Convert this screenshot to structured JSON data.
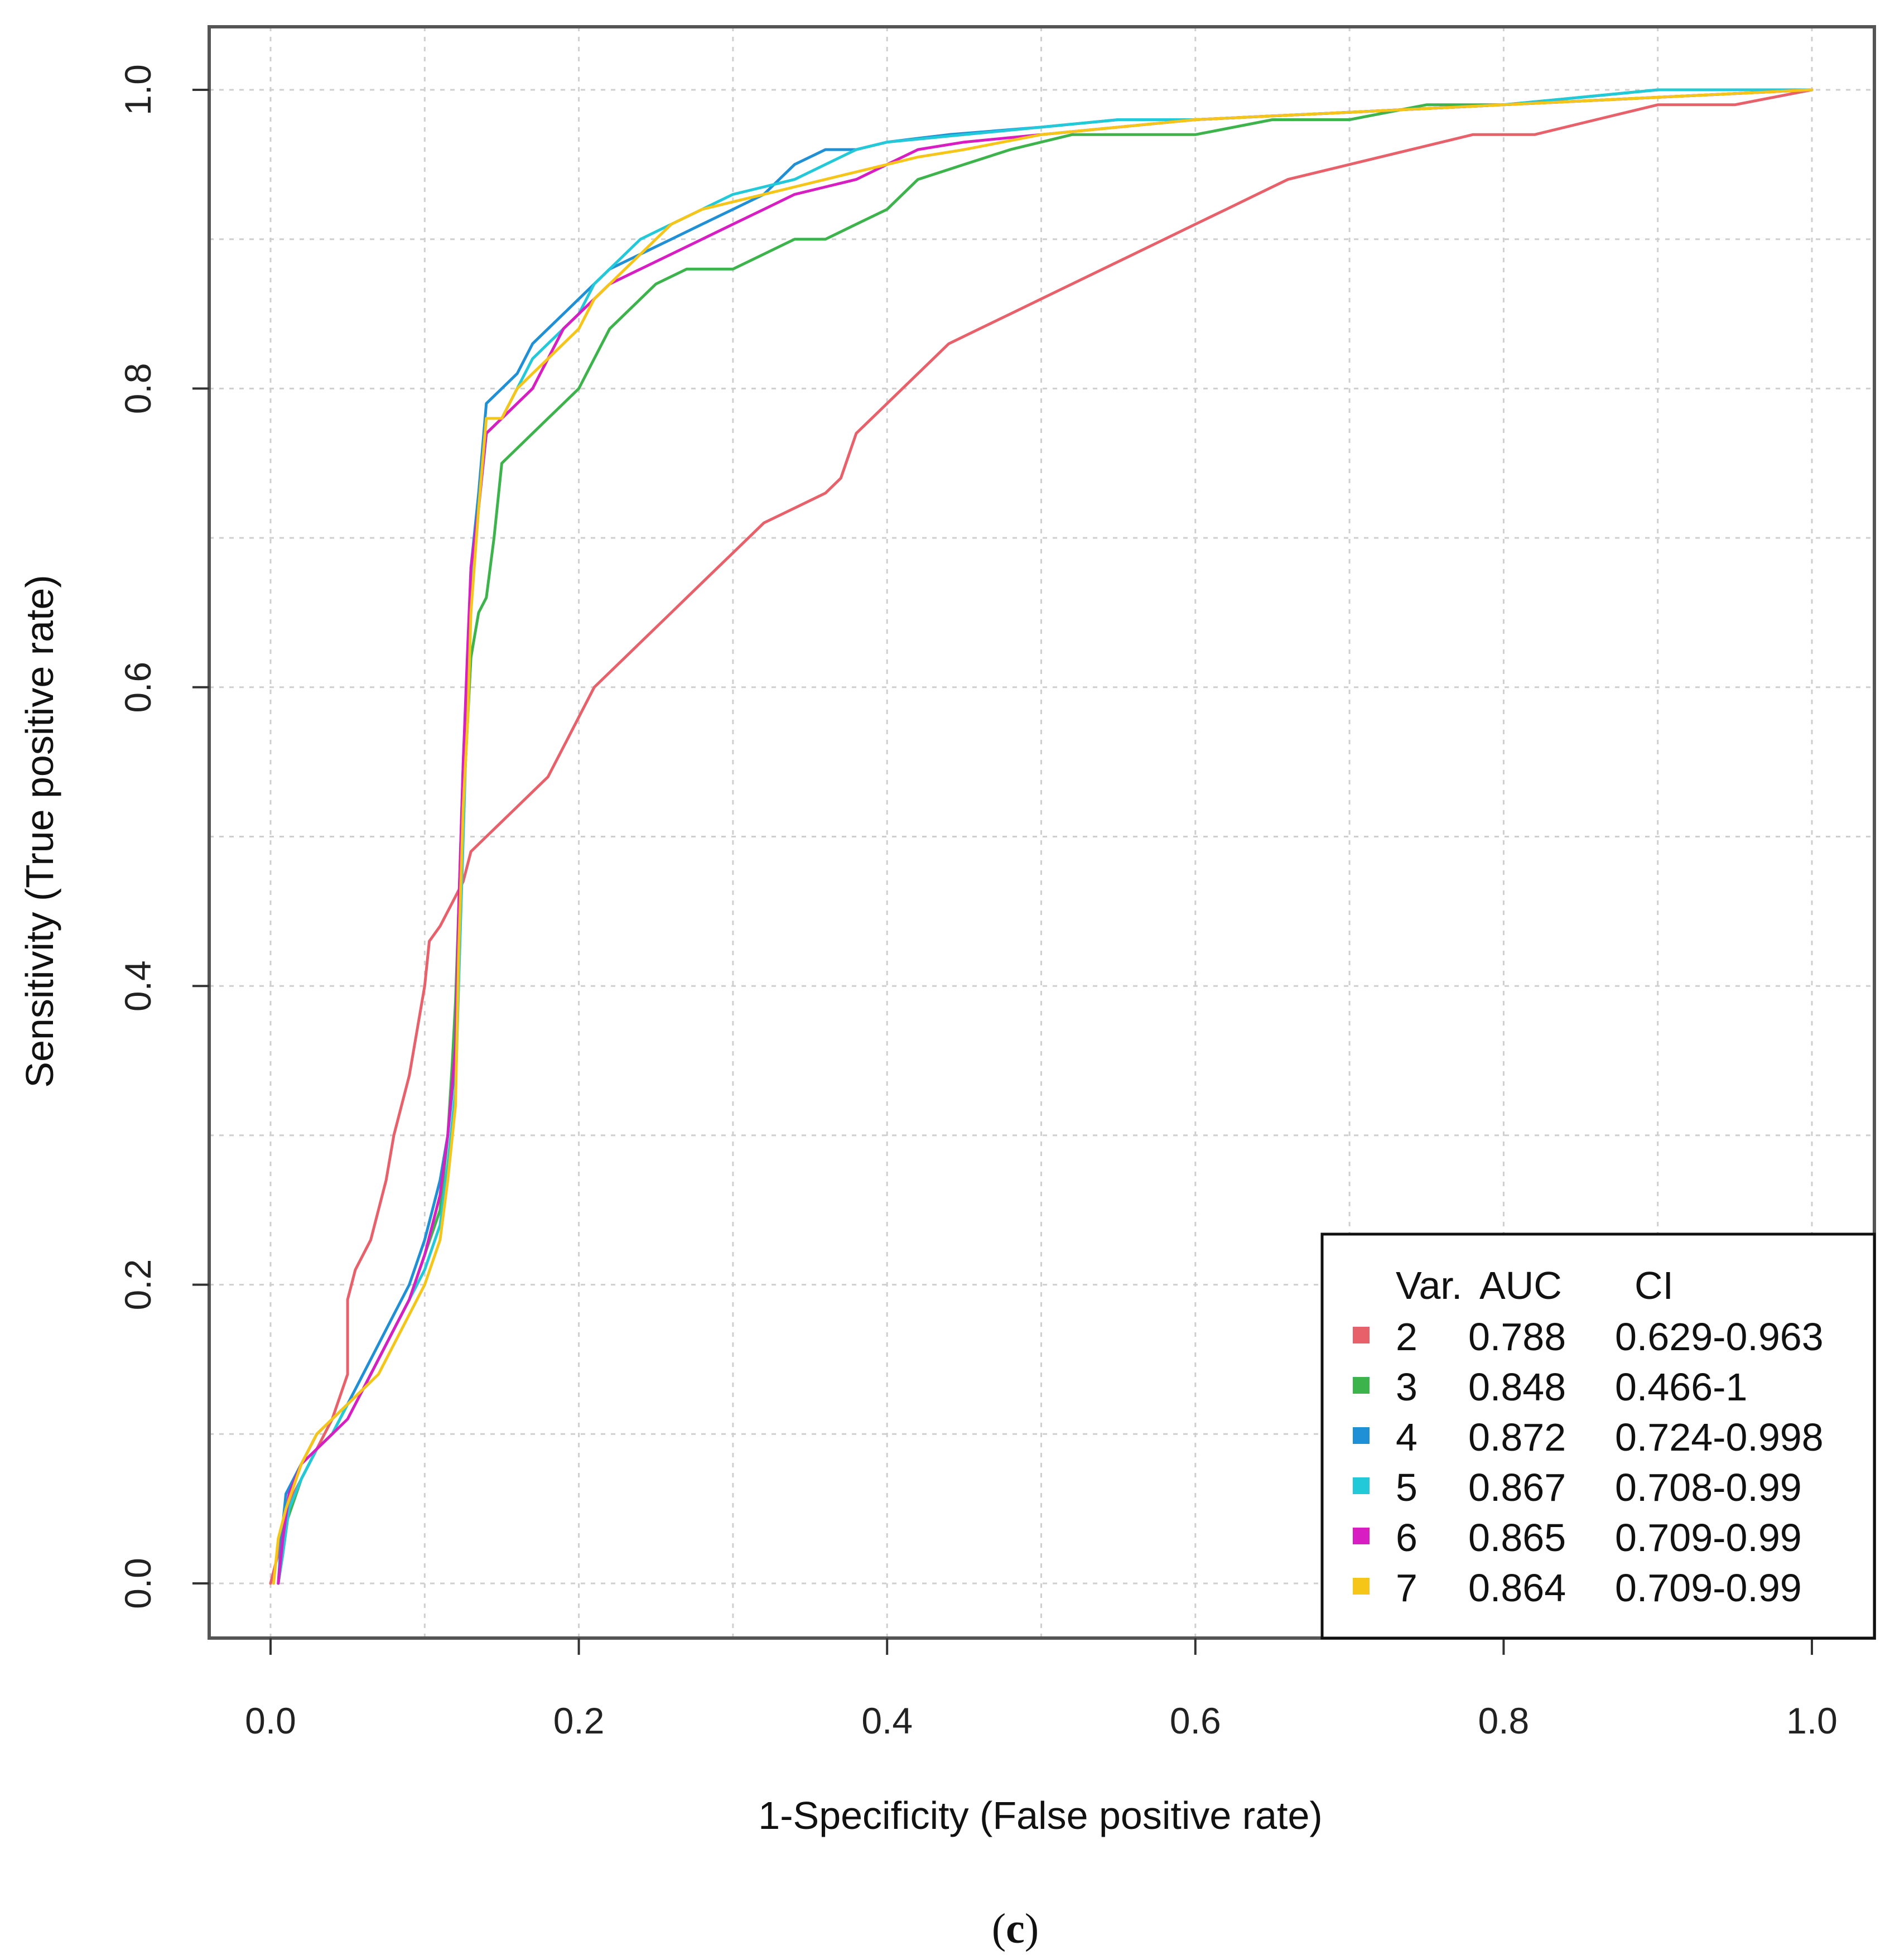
{
  "chart_data": {
    "type": "line",
    "title": "",
    "xlabel": "1-Specificity (False positive rate)",
    "ylabel": "Sensitivity (True positive rate)",
    "xlim": [
      0.0,
      1.0
    ],
    "ylim": [
      0.0,
      1.0
    ],
    "grid": true,
    "xticks": [
      "0.0",
      "0.2",
      "0.4",
      "0.6",
      "0.8",
      "1.0"
    ],
    "yticks": [
      "0.0",
      "0.2",
      "0.4",
      "0.6",
      "0.8",
      "1.0"
    ],
    "legend": {
      "position": "bottom-right",
      "header": {
        "var": "Var.",
        "auc": "AUC",
        "ci": "CI"
      }
    },
    "series": [
      {
        "name": "2",
        "auc": "0.788",
        "ci": "0.629-0.963",
        "color": "#e8606a",
        "points": [
          [
            0.0,
            0.0
          ],
          [
            0.005,
            0.02
          ],
          [
            0.01,
            0.05
          ],
          [
            0.02,
            0.07
          ],
          [
            0.03,
            0.09
          ],
          [
            0.04,
            0.11
          ],
          [
            0.05,
            0.14
          ],
          [
            0.05,
            0.19
          ],
          [
            0.055,
            0.21
          ],
          [
            0.065,
            0.23
          ],
          [
            0.075,
            0.27
          ],
          [
            0.08,
            0.3
          ],
          [
            0.09,
            0.34
          ],
          [
            0.095,
            0.37
          ],
          [
            0.1,
            0.4
          ],
          [
            0.103,
            0.43
          ],
          [
            0.11,
            0.44
          ],
          [
            0.12,
            0.46
          ],
          [
            0.125,
            0.47
          ],
          [
            0.13,
            0.49
          ],
          [
            0.14,
            0.5
          ],
          [
            0.15,
            0.51
          ],
          [
            0.16,
            0.52
          ],
          [
            0.17,
            0.53
          ],
          [
            0.18,
            0.54
          ],
          [
            0.19,
            0.56
          ],
          [
            0.2,
            0.58
          ],
          [
            0.21,
            0.6
          ],
          [
            0.22,
            0.61
          ],
          [
            0.23,
            0.62
          ],
          [
            0.24,
            0.63
          ],
          [
            0.26,
            0.65
          ],
          [
            0.27,
            0.66
          ],
          [
            0.28,
            0.67
          ],
          [
            0.3,
            0.69
          ],
          [
            0.32,
            0.71
          ],
          [
            0.34,
            0.72
          ],
          [
            0.36,
            0.73
          ],
          [
            0.37,
            0.74
          ],
          [
            0.38,
            0.77
          ],
          [
            0.39,
            0.78
          ],
          [
            0.4,
            0.79
          ],
          [
            0.42,
            0.81
          ],
          [
            0.44,
            0.83
          ],
          [
            0.46,
            0.84
          ],
          [
            0.48,
            0.85
          ],
          [
            0.5,
            0.86
          ],
          [
            0.52,
            0.87
          ],
          [
            0.54,
            0.88
          ],
          [
            0.56,
            0.89
          ],
          [
            0.58,
            0.9
          ],
          [
            0.6,
            0.91
          ],
          [
            0.62,
            0.92
          ],
          [
            0.64,
            0.93
          ],
          [
            0.66,
            0.94
          ],
          [
            0.7,
            0.95
          ],
          [
            0.74,
            0.96
          ],
          [
            0.78,
            0.97
          ],
          [
            0.82,
            0.97
          ],
          [
            0.86,
            0.98
          ],
          [
            0.9,
            0.99
          ],
          [
            0.95,
            0.99
          ],
          [
            1.0,
            1.0
          ]
        ]
      },
      {
        "name": "3",
        "auc": "0.848",
        "ci": "0.466-1",
        "color": "#3cb44b",
        "points": [
          [
            0.005,
            0.0
          ],
          [
            0.008,
            0.02
          ],
          [
            0.01,
            0.04
          ],
          [
            0.02,
            0.07
          ],
          [
            0.03,
            0.09
          ],
          [
            0.04,
            0.1
          ],
          [
            0.05,
            0.12
          ],
          [
            0.06,
            0.13
          ],
          [
            0.07,
            0.15
          ],
          [
            0.08,
            0.17
          ],
          [
            0.09,
            0.19
          ],
          [
            0.1,
            0.22
          ],
          [
            0.11,
            0.25
          ],
          [
            0.115,
            0.3
          ],
          [
            0.118,
            0.35
          ],
          [
            0.12,
            0.39
          ],
          [
            0.122,
            0.45
          ],
          [
            0.125,
            0.52
          ],
          [
            0.128,
            0.58
          ],
          [
            0.13,
            0.62
          ],
          [
            0.135,
            0.65
          ],
          [
            0.14,
            0.66
          ],
          [
            0.145,
            0.7
          ],
          [
            0.15,
            0.75
          ],
          [
            0.16,
            0.76
          ],
          [
            0.17,
            0.77
          ],
          [
            0.18,
            0.78
          ],
          [
            0.19,
            0.79
          ],
          [
            0.2,
            0.8
          ],
          [
            0.21,
            0.82
          ],
          [
            0.22,
            0.84
          ],
          [
            0.23,
            0.85
          ],
          [
            0.25,
            0.87
          ],
          [
            0.27,
            0.88
          ],
          [
            0.3,
            0.88
          ],
          [
            0.32,
            0.89
          ],
          [
            0.34,
            0.9
          ],
          [
            0.36,
            0.9
          ],
          [
            0.38,
            0.91
          ],
          [
            0.4,
            0.92
          ],
          [
            0.42,
            0.94
          ],
          [
            0.45,
            0.95
          ],
          [
            0.48,
            0.96
          ],
          [
            0.52,
            0.97
          ],
          [
            0.56,
            0.97
          ],
          [
            0.6,
            0.97
          ],
          [
            0.65,
            0.98
          ],
          [
            0.7,
            0.98
          ],
          [
            0.75,
            0.99
          ],
          [
            0.8,
            0.99
          ],
          [
            0.85,
            0.995
          ],
          [
            0.9,
            1.0
          ],
          [
            1.0,
            1.0
          ]
        ]
      },
      {
        "name": "4",
        "auc": "0.872",
        "ci": "0.724-0.998",
        "color": "#1f8fd6",
        "points": [
          [
            0.005,
            0.0
          ],
          [
            0.007,
            0.03
          ],
          [
            0.01,
            0.06
          ],
          [
            0.02,
            0.08
          ],
          [
            0.03,
            0.1
          ],
          [
            0.04,
            0.11
          ],
          [
            0.05,
            0.12
          ],
          [
            0.06,
            0.14
          ],
          [
            0.07,
            0.16
          ],
          [
            0.08,
            0.18
          ],
          [
            0.09,
            0.2
          ],
          [
            0.1,
            0.23
          ],
          [
            0.11,
            0.27
          ],
          [
            0.115,
            0.3
          ],
          [
            0.12,
            0.35
          ],
          [
            0.122,
            0.45
          ],
          [
            0.125,
            0.55
          ],
          [
            0.128,
            0.62
          ],
          [
            0.13,
            0.68
          ],
          [
            0.135,
            0.73
          ],
          [
            0.14,
            0.79
          ],
          [
            0.15,
            0.8
          ],
          [
            0.16,
            0.81
          ],
          [
            0.17,
            0.83
          ],
          [
            0.18,
            0.84
          ],
          [
            0.19,
            0.85
          ],
          [
            0.2,
            0.86
          ],
          [
            0.21,
            0.87
          ],
          [
            0.22,
            0.88
          ],
          [
            0.24,
            0.89
          ],
          [
            0.26,
            0.9
          ],
          [
            0.28,
            0.91
          ],
          [
            0.3,
            0.92
          ],
          [
            0.32,
            0.93
          ],
          [
            0.34,
            0.95
          ],
          [
            0.36,
            0.96
          ],
          [
            0.38,
            0.96
          ],
          [
            0.4,
            0.965
          ],
          [
            0.44,
            0.97
          ],
          [
            0.5,
            0.975
          ],
          [
            0.55,
            0.98
          ],
          [
            0.6,
            0.98
          ],
          [
            0.7,
            0.985
          ],
          [
            0.8,
            0.99
          ],
          [
            0.9,
            0.995
          ],
          [
            1.0,
            1.0
          ]
        ]
      },
      {
        "name": "5",
        "auc": "0.867",
        "ci": "0.708-0.99",
        "color": "#22c9d8",
        "points": [
          [
            0.005,
            0.0
          ],
          [
            0.008,
            0.02
          ],
          [
            0.012,
            0.05
          ],
          [
            0.02,
            0.07
          ],
          [
            0.03,
            0.09
          ],
          [
            0.04,
            0.1
          ],
          [
            0.05,
            0.12
          ],
          [
            0.06,
            0.13
          ],
          [
            0.07,
            0.15
          ],
          [
            0.08,
            0.17
          ],
          [
            0.09,
            0.19
          ],
          [
            0.1,
            0.21
          ],
          [
            0.11,
            0.24
          ],
          [
            0.115,
            0.28
          ],
          [
            0.12,
            0.33
          ],
          [
            0.122,
            0.4
          ],
          [
            0.125,
            0.5
          ],
          [
            0.128,
            0.6
          ],
          [
            0.13,
            0.66
          ],
          [
            0.135,
            0.72
          ],
          [
            0.14,
            0.77
          ],
          [
            0.15,
            0.78
          ],
          [
            0.16,
            0.8
          ],
          [
            0.17,
            0.82
          ],
          [
            0.18,
            0.83
          ],
          [
            0.19,
            0.84
          ],
          [
            0.2,
            0.85
          ],
          [
            0.21,
            0.87
          ],
          [
            0.22,
            0.88
          ],
          [
            0.24,
            0.9
          ],
          [
            0.26,
            0.91
          ],
          [
            0.28,
            0.92
          ],
          [
            0.3,
            0.93
          ],
          [
            0.32,
            0.935
          ],
          [
            0.34,
            0.94
          ],
          [
            0.36,
            0.95
          ],
          [
            0.38,
            0.96
          ],
          [
            0.4,
            0.965
          ],
          [
            0.45,
            0.97
          ],
          [
            0.5,
            0.975
          ],
          [
            0.55,
            0.98
          ],
          [
            0.6,
            0.98
          ],
          [
            0.7,
            0.985
          ],
          [
            0.8,
            0.99
          ],
          [
            0.9,
            1.0
          ],
          [
            1.0,
            1.0
          ]
        ]
      },
      {
        "name": "6",
        "auc": "0.865",
        "ci": "0.709-0.99",
        "color": "#d81ec2",
        "points": [
          [
            0.005,
            0.0
          ],
          [
            0.008,
            0.03
          ],
          [
            0.012,
            0.06
          ],
          [
            0.02,
            0.08
          ],
          [
            0.03,
            0.09
          ],
          [
            0.04,
            0.1
          ],
          [
            0.05,
            0.11
          ],
          [
            0.06,
            0.13
          ],
          [
            0.07,
            0.15
          ],
          [
            0.08,
            0.17
          ],
          [
            0.09,
            0.19
          ],
          [
            0.1,
            0.22
          ],
          [
            0.11,
            0.26
          ],
          [
            0.115,
            0.3
          ],
          [
            0.12,
            0.36
          ],
          [
            0.122,
            0.45
          ],
          [
            0.125,
            0.55
          ],
          [
            0.128,
            0.63
          ],
          [
            0.13,
            0.68
          ],
          [
            0.135,
            0.72
          ],
          [
            0.14,
            0.77
          ],
          [
            0.15,
            0.78
          ],
          [
            0.16,
            0.79
          ],
          [
            0.17,
            0.8
          ],
          [
            0.18,
            0.82
          ],
          [
            0.19,
            0.84
          ],
          [
            0.2,
            0.85
          ],
          [
            0.21,
            0.86
          ],
          [
            0.22,
            0.87
          ],
          [
            0.24,
            0.88
          ],
          [
            0.26,
            0.89
          ],
          [
            0.28,
            0.9
          ],
          [
            0.3,
            0.91
          ],
          [
            0.32,
            0.92
          ],
          [
            0.34,
            0.93
          ],
          [
            0.36,
            0.935
          ],
          [
            0.38,
            0.94
          ],
          [
            0.4,
            0.95
          ],
          [
            0.42,
            0.96
          ],
          [
            0.45,
            0.965
          ],
          [
            0.5,
            0.97
          ],
          [
            0.55,
            0.975
          ],
          [
            0.6,
            0.98
          ],
          [
            0.7,
            0.985
          ],
          [
            0.8,
            0.99
          ],
          [
            0.9,
            0.995
          ],
          [
            1.0,
            1.0
          ]
        ]
      },
      {
        "name": "7",
        "auc": "0.864",
        "ci": "0.709-0.99",
        "color": "#f5c518",
        "points": [
          [
            0.002,
            0.0
          ],
          [
            0.005,
            0.03
          ],
          [
            0.01,
            0.05
          ],
          [
            0.02,
            0.08
          ],
          [
            0.03,
            0.1
          ],
          [
            0.04,
            0.11
          ],
          [
            0.05,
            0.12
          ],
          [
            0.06,
            0.13
          ],
          [
            0.07,
            0.14
          ],
          [
            0.08,
            0.16
          ],
          [
            0.09,
            0.18
          ],
          [
            0.1,
            0.2
          ],
          [
            0.11,
            0.23
          ],
          [
            0.115,
            0.27
          ],
          [
            0.12,
            0.32
          ],
          [
            0.122,
            0.42
          ],
          [
            0.125,
            0.52
          ],
          [
            0.128,
            0.58
          ],
          [
            0.13,
            0.65
          ],
          [
            0.135,
            0.72
          ],
          [
            0.14,
            0.78
          ],
          [
            0.15,
            0.78
          ],
          [
            0.16,
            0.8
          ],
          [
            0.17,
            0.81
          ],
          [
            0.18,
            0.82
          ],
          [
            0.19,
            0.83
          ],
          [
            0.2,
            0.84
          ],
          [
            0.21,
            0.86
          ],
          [
            0.22,
            0.87
          ],
          [
            0.24,
            0.89
          ],
          [
            0.26,
            0.91
          ],
          [
            0.28,
            0.92
          ],
          [
            0.3,
            0.925
          ],
          [
            0.32,
            0.93
          ],
          [
            0.34,
            0.935
          ],
          [
            0.36,
            0.94
          ],
          [
            0.38,
            0.945
          ],
          [
            0.4,
            0.95
          ],
          [
            0.42,
            0.955
          ],
          [
            0.45,
            0.96
          ],
          [
            0.5,
            0.97
          ],
          [
            0.55,
            0.975
          ],
          [
            0.6,
            0.98
          ],
          [
            0.7,
            0.985
          ],
          [
            0.8,
            0.99
          ],
          [
            0.9,
            0.995
          ],
          [
            1.0,
            1.0
          ]
        ]
      }
    ]
  },
  "caption": {
    "open": "(",
    "letter": "c",
    "close": ")"
  }
}
